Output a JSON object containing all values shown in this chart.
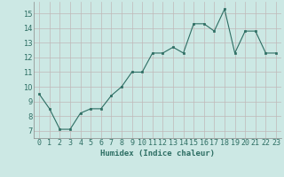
{
  "xlabel": "Humidex (Indice chaleur)",
  "ylabel": "",
  "x_values": [
    0,
    1,
    2,
    3,
    4,
    5,
    6,
    7,
    8,
    9,
    10,
    11,
    12,
    13,
    14,
    15,
    16,
    17,
    18,
    19,
    20,
    21,
    22,
    23
  ],
  "y_values": [
    9.5,
    8.5,
    7.1,
    7.1,
    8.2,
    8.5,
    8.5,
    9.4,
    10.0,
    11.0,
    11.0,
    12.3,
    12.3,
    12.7,
    12.3,
    14.3,
    14.3,
    13.8,
    15.3,
    12.3,
    13.8,
    13.8,
    12.3,
    12.3
  ],
  "line_color": "#2d6e63",
  "marker_color": "#2d6e63",
  "bg_color": "#cce8e4",
  "grid_color": "#c0b8b8",
  "ylim": [
    6.5,
    15.8
  ],
  "xlim": [
    -0.5,
    23.5
  ],
  "yticks": [
    7,
    8,
    9,
    10,
    11,
    12,
    13,
    14,
    15
  ],
  "xtick_labels": [
    "0",
    "1",
    "2",
    "3",
    "4",
    "5",
    "6",
    "7",
    "8",
    "9",
    "10",
    "11",
    "12",
    "13",
    "14",
    "15",
    "16",
    "17",
    "18",
    "19",
    "20",
    "21",
    "22",
    "23"
  ],
  "label_fontsize": 6.5,
  "tick_fontsize": 6.0
}
